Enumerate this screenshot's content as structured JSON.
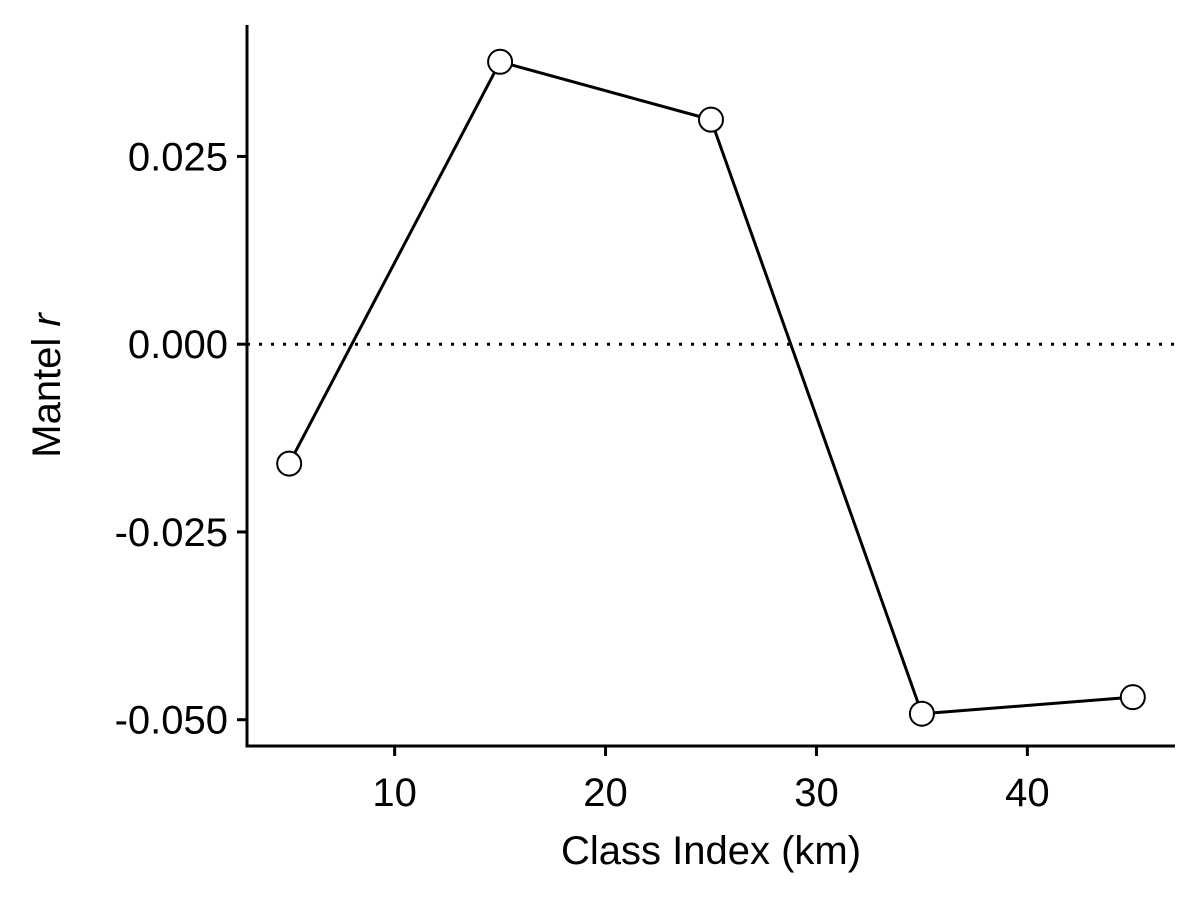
{
  "chart_data": {
    "type": "line",
    "xlabel": "Class Index (km)",
    "ylabel": "Mantel",
    "ylabel_italic": "r",
    "xlim": [
      3,
      47
    ],
    "ylim": [
      -0.0535,
      0.0425
    ],
    "x_ticks": [
      10,
      20,
      30,
      40
    ],
    "y_ticks": [
      -0.05,
      -0.025,
      0,
      0.025
    ],
    "y_tick_labels": [
      "-0.050",
      "-0.025",
      "0.000",
      "0.025"
    ],
    "reference_line": {
      "y": 0,
      "style": "dotted"
    },
    "series": [
      {
        "x": [
          5,
          15,
          25,
          35,
          45
        ],
        "y": [
          -0.0159,
          0.0376,
          0.0299,
          -0.0492,
          -0.047
        ]
      }
    ],
    "colors": {
      "line": "#000000",
      "marker_fill": "#ffffff",
      "marker_edge": "#000000"
    }
  }
}
